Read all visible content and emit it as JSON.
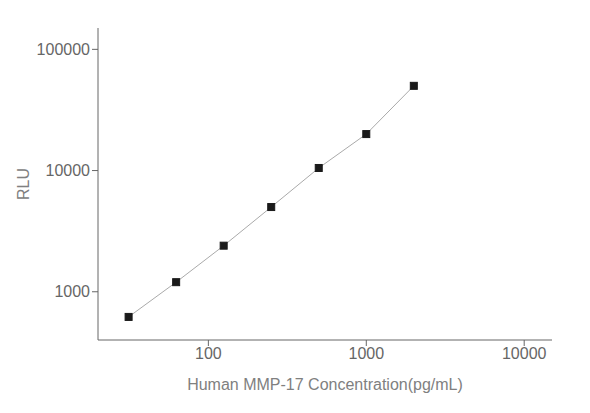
{
  "chart_data": {
    "type": "line",
    "x": [
      31.25,
      62.5,
      125,
      250,
      500,
      1000,
      2000
    ],
    "values": [
      620,
      1200,
      2400,
      5000,
      10500,
      20000,
      50000
    ],
    "xlabel": "Human MMP-17 Concentration(pg/mL)",
    "ylabel": "RLU",
    "xlim": [
      20,
      15000
    ],
    "ylim": [
      400,
      150000
    ],
    "xticks": [
      100,
      1000,
      10000
    ],
    "yticks": [
      1000,
      10000,
      100000
    ],
    "log": true,
    "grid": false,
    "color": "#aaaaaa",
    "colors": [
      "#1a1a1a",
      "#1a1a1a",
      "#1a1a1a",
      "#1a1a1a",
      "#1a1a1a",
      "#1a1a1a",
      "#1a1a1a"
    ],
    "marker": "square"
  }
}
